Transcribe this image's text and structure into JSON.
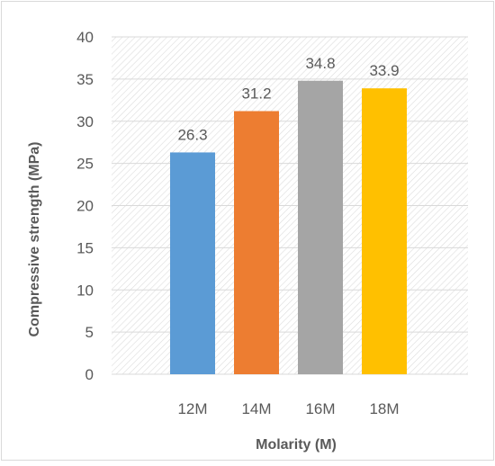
{
  "chart_data": {
    "type": "bar",
    "title": "",
    "xlabel": "Molarity (M)",
    "ylabel": "Compressive strength (MPa)",
    "categories": [
      "12M",
      "14M",
      "16M",
      "18M"
    ],
    "values": [
      26.3,
      31.2,
      34.8,
      33.9
    ],
    "data_labels": [
      "26.3",
      "31.2",
      "34.8",
      "33.9"
    ],
    "ylim": [
      0,
      40
    ],
    "y_ticks": [
      "0",
      "5",
      "10",
      "15",
      "20",
      "25",
      "30",
      "35",
      "40"
    ],
    "grid": true,
    "legend": "none",
    "background_pattern": "diagonal-hatch",
    "colors": [
      "#5b9bd5",
      "#ed7d31",
      "#a5a5a5",
      "#ffc000"
    ],
    "text_color": "#595959",
    "grid_color": "#d9d9d9",
    "border_color": "#d9d9d9"
  }
}
